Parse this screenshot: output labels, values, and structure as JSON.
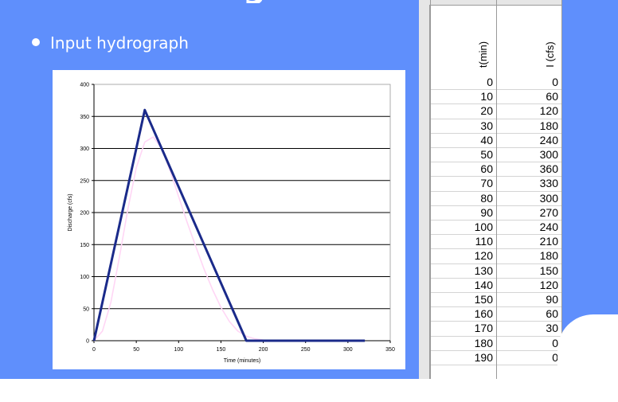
{
  "slide": {
    "title_fragment": "g",
    "bullet": "Input hydrograph"
  },
  "colors": {
    "slide_bg": "#5f8ffc",
    "series_main": "#1a2a8a",
    "series_faint": "#ffd6f5"
  },
  "chart_data": {
    "type": "line",
    "xlabel": "Time (minutes)",
    "ylabel": "Discharge (cfs)",
    "xlim": [
      0,
      350
    ],
    "ylim": [
      0,
      400
    ],
    "x_ticks": [
      0,
      50,
      100,
      150,
      200,
      250,
      300,
      350
    ],
    "y_ticks": [
      0,
      50,
      100,
      150,
      200,
      250,
      300,
      350,
      400
    ],
    "grid": "horizontal",
    "series": [
      {
        "x": [
          0,
          60,
          180,
          320
        ],
        "y": [
          0,
          360,
          0,
          0
        ]
      },
      {
        "x": [
          0,
          10,
          20,
          30,
          40,
          50,
          60,
          70,
          80,
          90,
          100,
          110,
          120,
          130,
          140,
          150,
          160,
          170,
          180,
          190,
          200,
          220,
          240
        ],
        "y": [
          0,
          15,
          60,
          130,
          205,
          270,
          310,
          318,
          300,
          265,
          225,
          185,
          148,
          112,
          80,
          52,
          30,
          15,
          7,
          3,
          1,
          0,
          0
        ]
      }
    ]
  },
  "table": {
    "headers": [
      "t(min)",
      "I (cfs)"
    ],
    "rows": [
      [
        "0",
        "0"
      ],
      [
        "10",
        "60"
      ],
      [
        "20",
        "120"
      ],
      [
        "30",
        "180"
      ],
      [
        "40",
        "240"
      ],
      [
        "50",
        "300"
      ],
      [
        "60",
        "360"
      ],
      [
        "70",
        "330"
      ],
      [
        "80",
        "300"
      ],
      [
        "90",
        "270"
      ],
      [
        "100",
        "240"
      ],
      [
        "110",
        "210"
      ],
      [
        "120",
        "180"
      ],
      [
        "130",
        "150"
      ],
      [
        "140",
        "120"
      ],
      [
        "150",
        "90"
      ],
      [
        "160",
        "60"
      ],
      [
        "170",
        "30"
      ],
      [
        "180",
        "0"
      ],
      [
        "190",
        "0"
      ]
    ]
  }
}
